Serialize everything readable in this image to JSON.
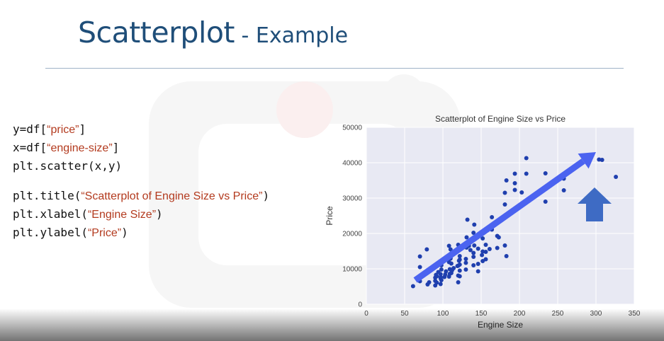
{
  "slide": {
    "title_main": "Scatterplot",
    "title_sub": " - Example"
  },
  "code": {
    "lines": [
      {
        "pre": "y=df[",
        "str": "“price”",
        "post": "]"
      },
      {
        "pre": "x=df[",
        "str": "“engine-size”",
        "post": "]"
      },
      {
        "pre": "plt.scatter(x,y)",
        "str": "",
        "post": ""
      },
      {
        "pre": "plt.title(",
        "str": "“Scatterplot of Engine Size vs Price”",
        "post": ")"
      },
      {
        "pre": "plt.xlabel(",
        "str": "“Engine Size”",
        "post": ")"
      },
      {
        "pre": "plt.ylabel(",
        "str": "“Price”",
        "post": ")"
      }
    ]
  },
  "colors": {
    "title": "#1f4e79",
    "string_literal": "#b33a1e",
    "point": "#1f3fae",
    "trend_arrow": "#4b63f0",
    "up_arrow": "#3e6bc4",
    "plot_bg": "#e8e9f3"
  },
  "icons": {
    "trend": "diagonal-arrow-icon",
    "up": "up-arrow-icon"
  },
  "chart_data": {
    "type": "scatter",
    "title": "Scatterplot of Engine Size vs Price",
    "xlabel": "Engine Size",
    "ylabel": "Price",
    "xlim": [
      0,
      350
    ],
    "ylim": [
      0,
      50000
    ],
    "xticks": [
      "0",
      "50",
      "100",
      "150",
      "200",
      "250",
      "300",
      "350"
    ],
    "yticks": [
      "0",
      "10000",
      "20000",
      "30000",
      "40000",
      "50000"
    ],
    "grid": true,
    "legend": "none",
    "points": [
      [
        61,
        5100
      ],
      [
        70,
        6500
      ],
      [
        70,
        7800
      ],
      [
        70,
        10500
      ],
      [
        70,
        13500
      ],
      [
        79,
        15500
      ],
      [
        80,
        5600
      ],
      [
        80,
        8900
      ],
      [
        82,
        6200
      ],
      [
        90,
        5300
      ],
      [
        90,
        6600
      ],
      [
        90,
        7500
      ],
      [
        91,
        8300
      ],
      [
        92,
        6100
      ],
      [
        92,
        7900
      ],
      [
        94,
        9100
      ],
      [
        97,
        5700
      ],
      [
        97,
        7300
      ],
      [
        97,
        7600
      ],
      [
        97,
        8500
      ],
      [
        98,
        6800
      ],
      [
        98,
        9800
      ],
      [
        98,
        11000
      ],
      [
        98,
        12100
      ],
      [
        102,
        7700
      ],
      [
        103,
        8400
      ],
      [
        104,
        9300
      ],
      [
        108,
        7800
      ],
      [
        108,
        11900
      ],
      [
        108,
        16500
      ],
      [
        109,
        8600
      ],
      [
        109,
        9900
      ],
      [
        110,
        12900
      ],
      [
        110,
        15500
      ],
      [
        110,
        13200
      ],
      [
        111,
        11500
      ],
      [
        111,
        8800
      ],
      [
        112,
        9600
      ],
      [
        114,
        10200
      ],
      [
        119,
        10800
      ],
      [
        120,
        6200
      ],
      [
        120,
        8100
      ],
      [
        120,
        10900
      ],
      [
        120,
        16800
      ],
      [
        121,
        12300
      ],
      [
        122,
        7900
      ],
      [
        122,
        9500
      ],
      [
        122,
        11200
      ],
      [
        122,
        12600
      ],
      [
        122,
        13600
      ],
      [
        130,
        9800
      ],
      [
        130,
        11700
      ],
      [
        130,
        12800
      ],
      [
        131,
        16000
      ],
      [
        131,
        18900
      ],
      [
        132,
        17100
      ],
      [
        132,
        23900
      ],
      [
        134,
        16500
      ],
      [
        136,
        15300
      ],
      [
        136,
        17600
      ],
      [
        140,
        11000
      ],
      [
        140,
        13400
      ],
      [
        140,
        14500
      ],
      [
        140,
        20200
      ],
      [
        141,
        16600
      ],
      [
        141,
        22500
      ],
      [
        146,
        9300
      ],
      [
        146,
        11400
      ],
      [
        146,
        15700
      ],
      [
        151,
        13900
      ],
      [
        152,
        12200
      ],
      [
        152,
        14900
      ],
      [
        152,
        18600
      ],
      [
        156,
        12700
      ],
      [
        156,
        14800
      ],
      [
        156,
        16800
      ],
      [
        161,
        15600
      ],
      [
        164,
        21100
      ],
      [
        164,
        24600
      ],
      [
        171,
        15900
      ],
      [
        171,
        19300
      ],
      [
        173,
        18900
      ],
      [
        181,
        16600
      ],
      [
        181,
        28200
      ],
      [
        181,
        31500
      ],
      [
        183,
        13600
      ],
      [
        183,
        35000
      ],
      [
        194,
        34200
      ],
      [
        194,
        36900
      ],
      [
        194,
        32300
      ],
      [
        203,
        31600
      ],
      [
        209,
        36900
      ],
      [
        209,
        41300
      ],
      [
        234,
        29000
      ],
      [
        234,
        37000
      ],
      [
        258,
        32200
      ],
      [
        258,
        35500
      ],
      [
        304,
        40900
      ],
      [
        308,
        40800
      ],
      [
        326,
        36000
      ]
    ]
  }
}
